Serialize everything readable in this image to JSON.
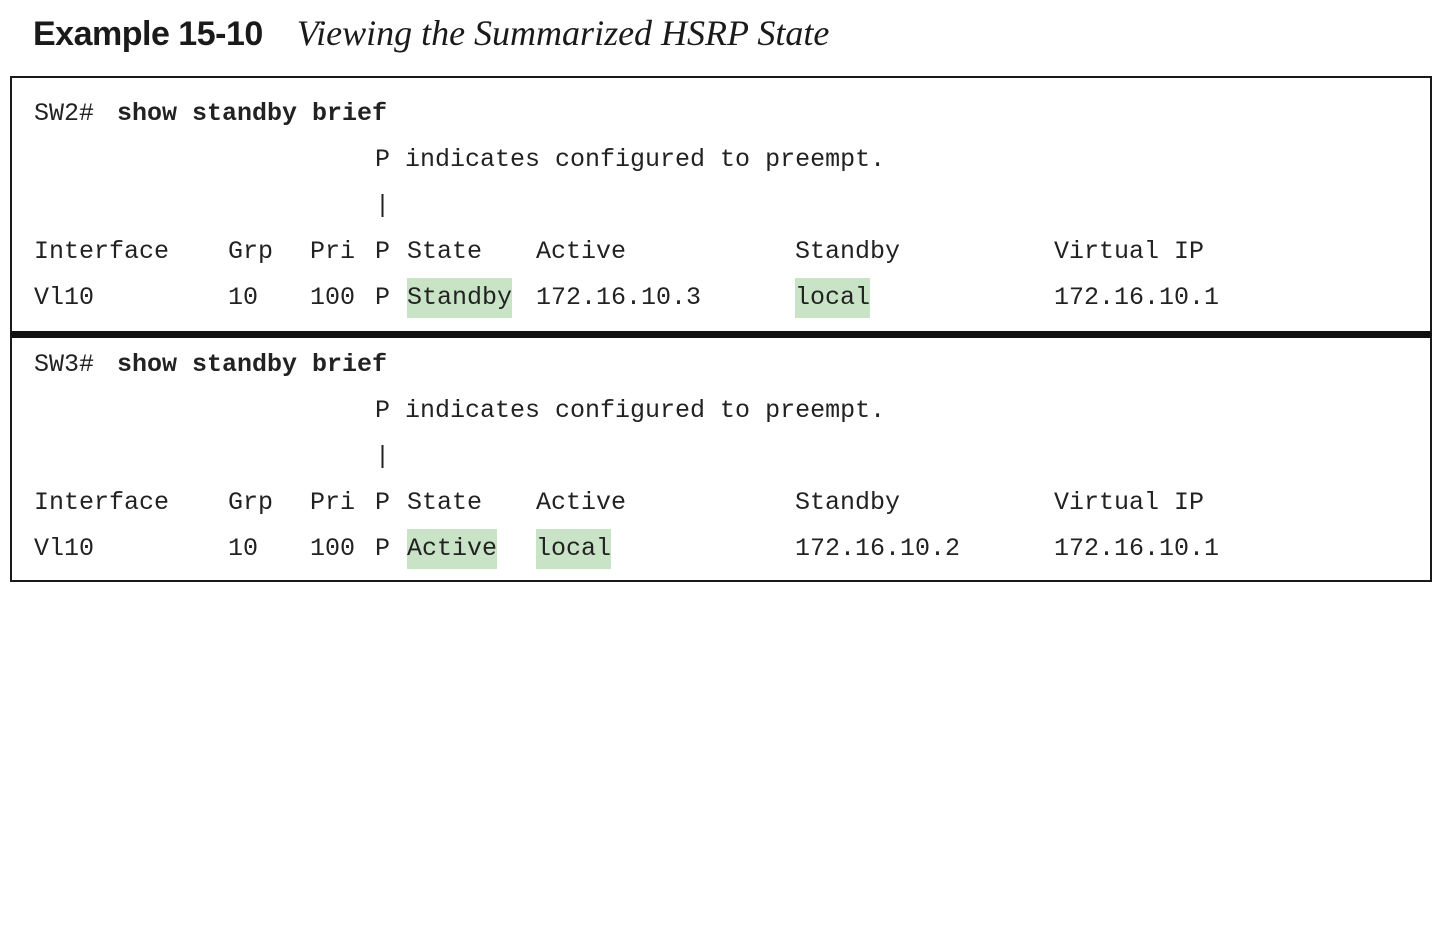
{
  "caption": {
    "number": "Example 15-10",
    "title": "Viewing the Summarized HSRP State"
  },
  "blocks": [
    {
      "prompt": "SW2#",
      "command": "show standby brief",
      "note": "P indicates configured to preempt.",
      "pipe": "|",
      "headers": {
        "interface": "Interface",
        "grp": "Grp",
        "pri": "Pri",
        "p": "P",
        "state": "State",
        "active": "Active",
        "standby": "Standby",
        "vip": "Virtual IP"
      },
      "row": {
        "interface": "Vl10",
        "grp": "10",
        "pri": "100",
        "p": "P",
        "state": "Standby",
        "active": "172.16.10.3",
        "standby": "local",
        "vip": "172.16.10.1"
      }
    },
    {
      "prompt": "SW3#",
      "command": "show standby brief",
      "note": "P indicates configured to preempt.",
      "pipe": "|",
      "headers": {
        "interface": "Interface",
        "grp": "Grp",
        "pri": "Pri",
        "p": "P",
        "state": "State",
        "active": "Active",
        "standby": "Standby",
        "vip": "Virtual IP"
      },
      "row": {
        "interface": "Vl10",
        "grp": "10",
        "pri": "100",
        "p": "P",
        "state": "Active",
        "active": "local",
        "standby": "172.16.10.2",
        "vip": "172.16.10.1"
      }
    }
  ],
  "highlight_color": "#c9e3c6"
}
